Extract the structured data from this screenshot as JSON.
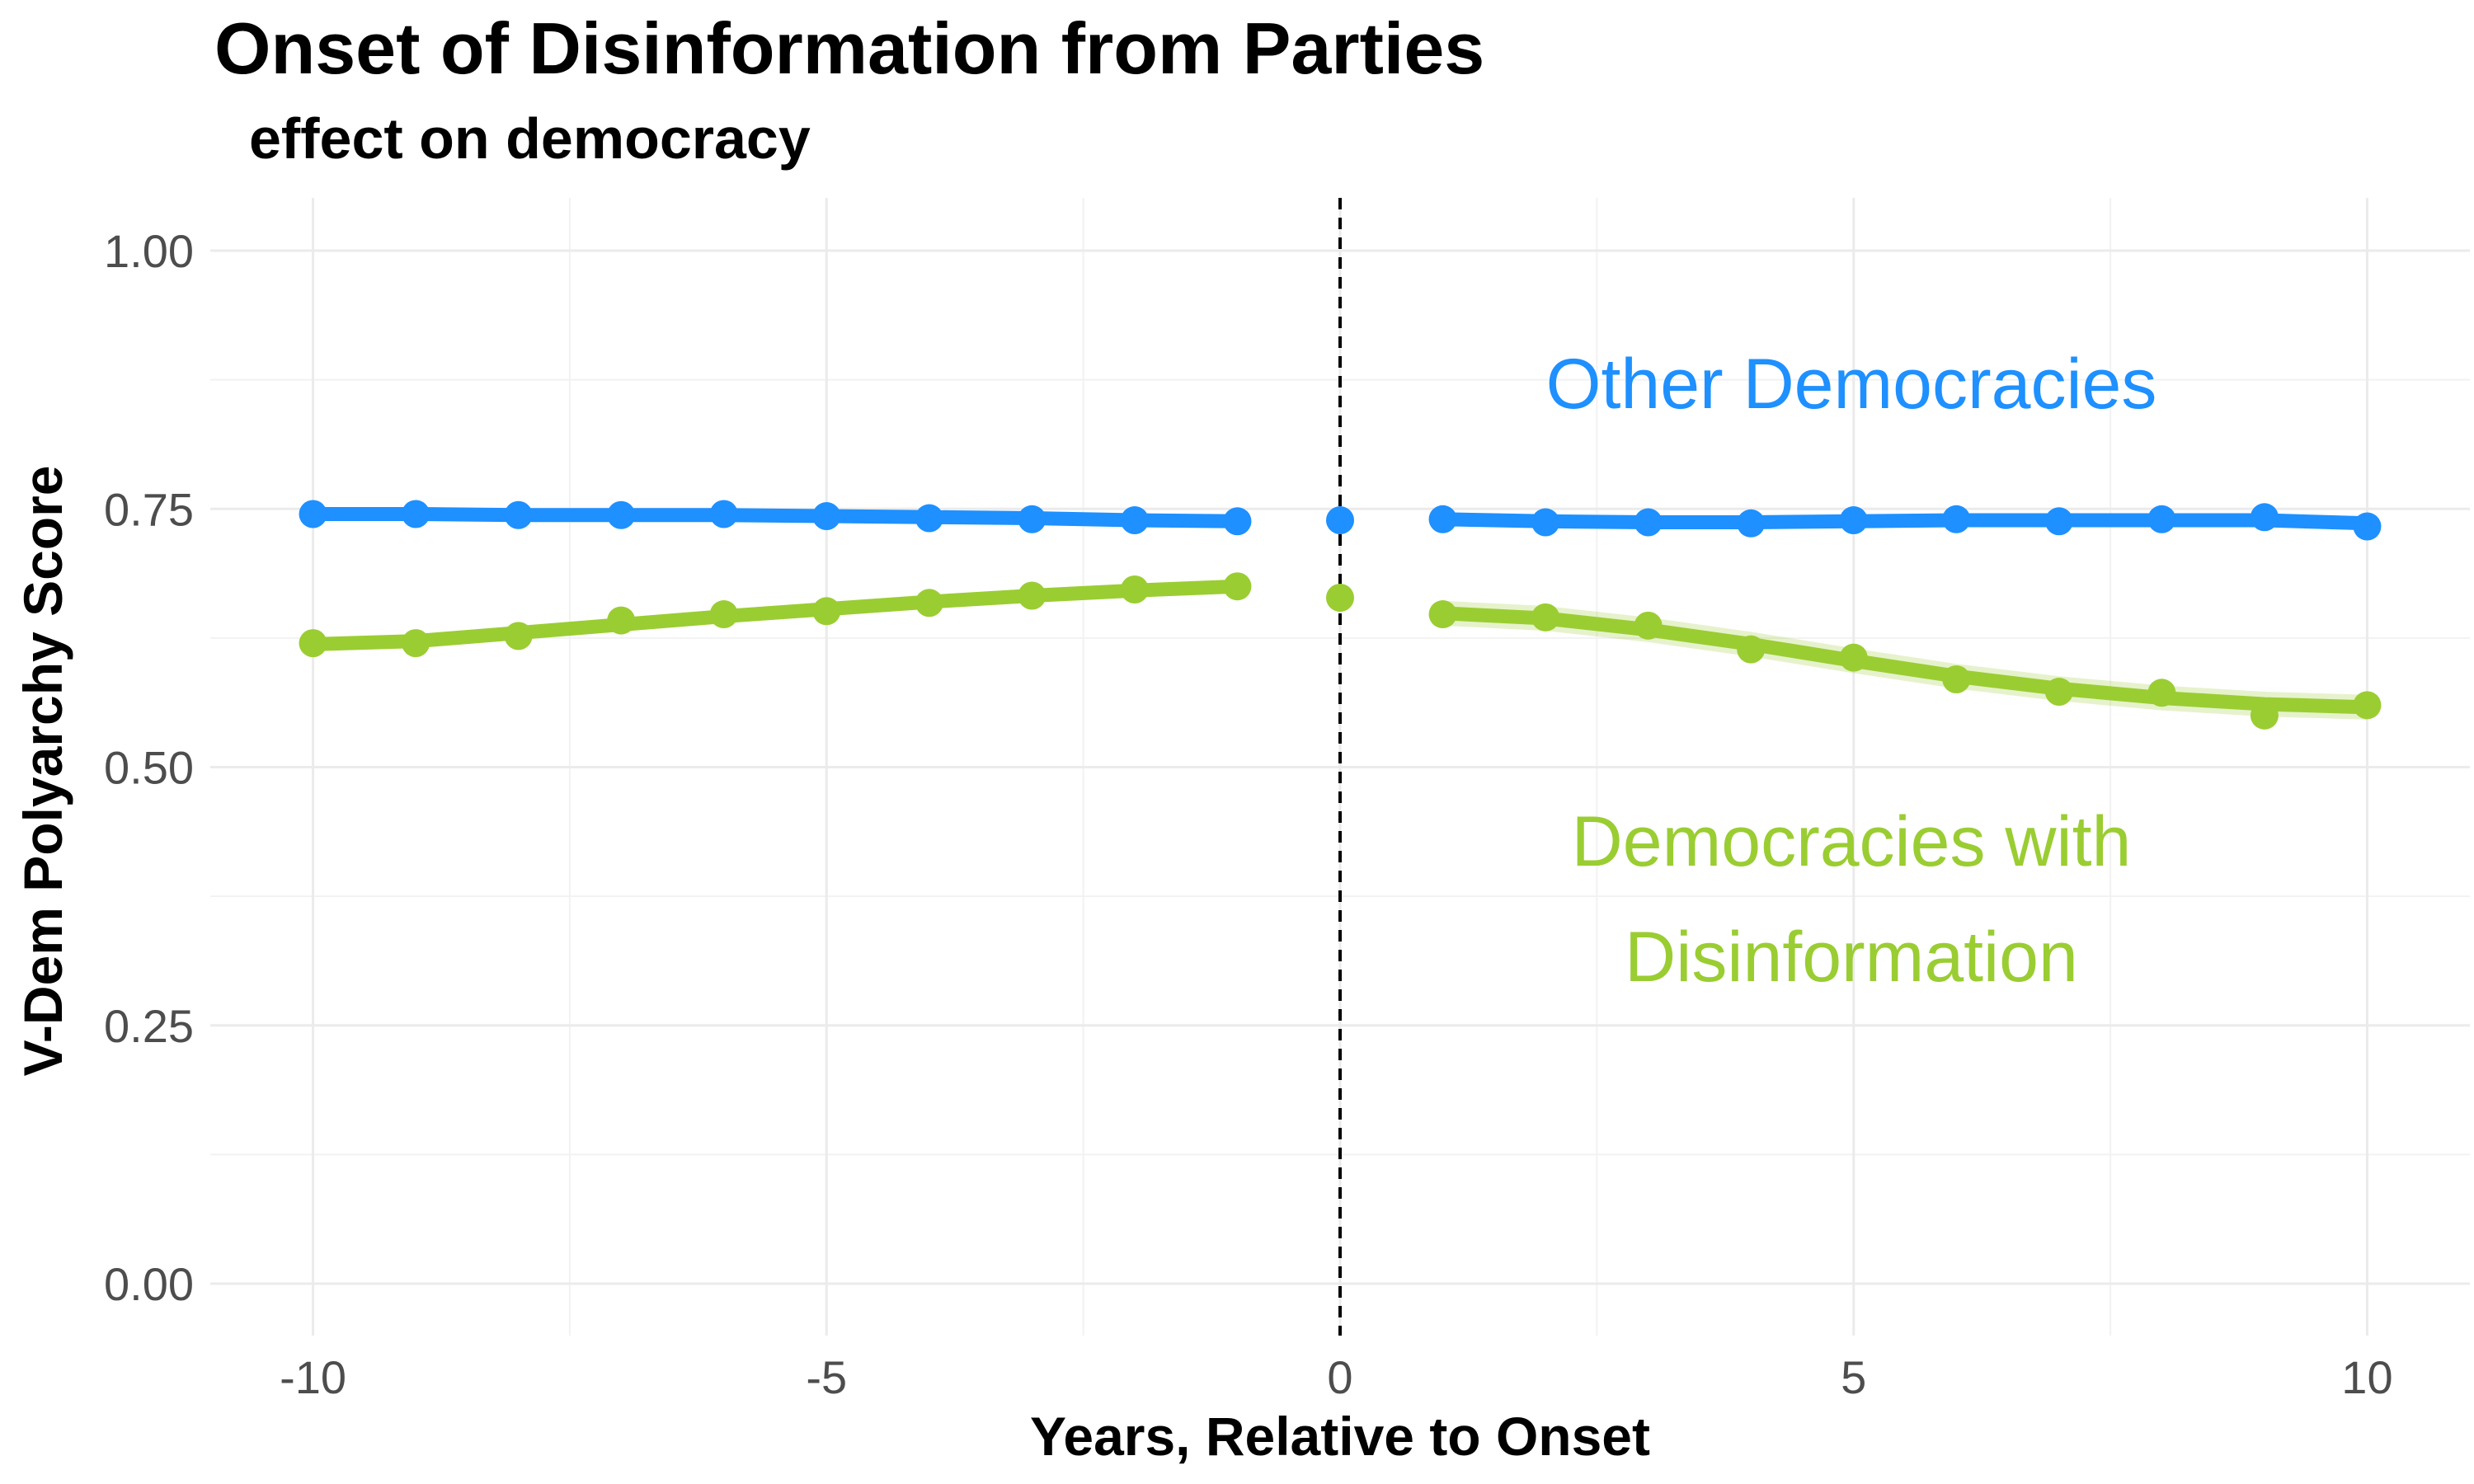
{
  "chart_data": {
    "type": "line",
    "title": "Onset of Disinformation from Parties",
    "subtitle": "effect on democracy",
    "xlabel": "Years, Relative to Onset",
    "ylabel": "V-Dem Polyarchy Score",
    "xlim": [
      -11,
      11
    ],
    "ylim": [
      0,
      1.0
    ],
    "x_ticks": [
      -10,
      -5,
      0,
      5,
      10
    ],
    "x_tick_labels": [
      "-10",
      "-5",
      "0",
      "5",
      "10"
    ],
    "y_ticks": [
      0,
      0.25,
      0.5,
      0.75,
      1.0
    ],
    "y_tick_labels": [
      "0.00",
      "0.25",
      "0.50",
      "0.75",
      "1.00"
    ],
    "grid": true,
    "vline_x": 0,
    "series": [
      {
        "name": "Other Democracies",
        "color": "#1e90ff",
        "label_lines": [
          "Other Democracies"
        ],
        "x": [
          -10,
          -9,
          -8,
          -7,
          -6,
          -5,
          -4,
          -3,
          -2,
          -1,
          0,
          1,
          2,
          3,
          4,
          5,
          6,
          7,
          8,
          9,
          10
        ],
        "values": [
          0.745,
          0.745,
          0.744,
          0.744,
          0.745,
          0.743,
          0.741,
          0.74,
          0.739,
          0.738,
          0.739,
          0.74,
          0.737,
          0.737,
          0.736,
          0.739,
          0.74,
          0.738,
          0.74,
          0.742,
          0.733
        ],
        "smooth_before": [
          0.745,
          0.745,
          0.744,
          0.744,
          0.744,
          0.743,
          0.742,
          0.741,
          0.739,
          0.738
        ],
        "smooth_after": [
          0.74,
          0.738,
          0.737,
          0.737,
          0.738,
          0.739,
          0.739,
          0.739,
          0.739,
          0.736
        ]
      },
      {
        "name": "Democracies with Disinformation",
        "color": "#9acd32",
        "label_lines": [
          "Democracies with",
          "Disinformation"
        ],
        "x": [
          -10,
          -9,
          -8,
          -7,
          -6,
          -5,
          -4,
          -3,
          -2,
          -1,
          0,
          1,
          2,
          3,
          4,
          5,
          6,
          7,
          8,
          9,
          10
        ],
        "values": [
          0.62,
          0.62,
          0.627,
          0.642,
          0.648,
          0.651,
          0.659,
          0.666,
          0.672,
          0.675,
          0.664,
          0.648,
          0.645,
          0.637,
          0.614,
          0.606,
          0.585,
          0.573,
          0.572,
          0.55,
          0.56
        ],
        "smooth_before": [
          0.619,
          0.622,
          0.63,
          0.638,
          0.646,
          0.653,
          0.66,
          0.666,
          0.671,
          0.675
        ],
        "smooth_after": [
          0.649,
          0.644,
          0.633,
          0.619,
          0.603,
          0.588,
          0.576,
          0.567,
          0.561,
          0.558
        ]
      }
    ]
  }
}
